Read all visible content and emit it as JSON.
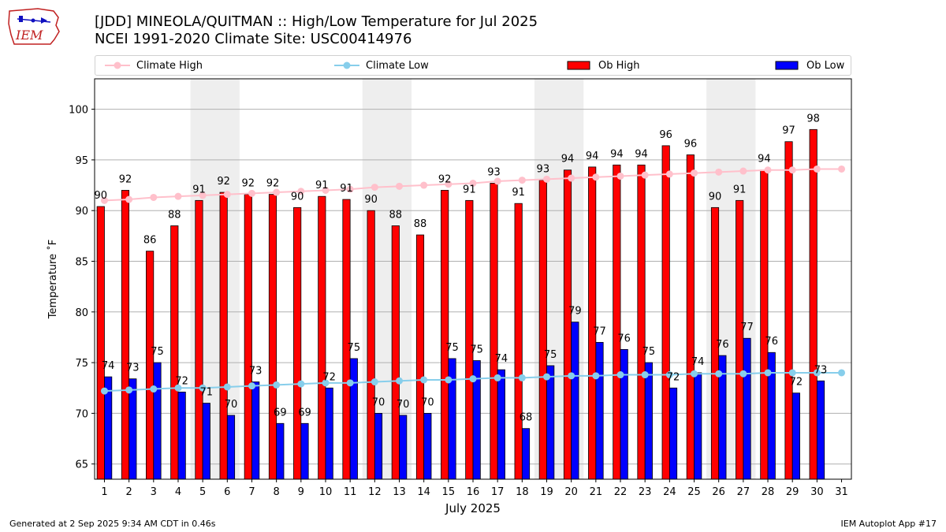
{
  "header": {
    "title_line1": "[JDD] MINEOLA/QUITMAN :: High/Low Temperature for Jul 2025",
    "title_line2": "NCEI 1991-2020 Climate Site: USC00414976",
    "logo_text": "IEM"
  },
  "footer": {
    "generated": "Generated at 2 Sep 2025 9:34 AM CDT in 0.46s",
    "app": "IEM Autoplot App #17"
  },
  "colors": {
    "ob_high": "#ff0000",
    "ob_low": "#0000ff",
    "climate_high": "#ffc0cb",
    "climate_low": "#87ceeb",
    "weekend_shade": "#eeeeee",
    "grid": "#b0b0b0"
  },
  "chart_data": {
    "type": "bar",
    "xlabel": "July 2025",
    "ylabel": "Temperature ˚F",
    "ylim": [
      63.5,
      103
    ],
    "yticks": [
      65,
      70,
      75,
      80,
      85,
      90,
      95,
      100
    ],
    "grid": "horizontal",
    "legend_position": "top",
    "x": [
      1,
      2,
      3,
      4,
      5,
      6,
      7,
      8,
      9,
      10,
      11,
      12,
      13,
      14,
      15,
      16,
      17,
      18,
      19,
      20,
      21,
      22,
      23,
      24,
      25,
      26,
      27,
      28,
      29,
      30,
      31
    ],
    "shaded_weekends": [
      [
        5,
        6
      ],
      [
        12,
        13
      ],
      [
        19,
        20
      ],
      [
        26,
        27
      ]
    ],
    "series": [
      {
        "name": "Climate High",
        "kind": "line",
        "values": [
          91.0,
          91.1,
          91.3,
          91.4,
          91.5,
          91.6,
          91.7,
          91.8,
          91.9,
          92.0,
          92.1,
          92.3,
          92.4,
          92.5,
          92.6,
          92.7,
          92.9,
          93.0,
          93.1,
          93.2,
          93.3,
          93.4,
          93.5,
          93.6,
          93.7,
          93.8,
          93.9,
          94.0,
          94.0,
          94.1,
          94.1
        ]
      },
      {
        "name": "Climate Low",
        "kind": "line",
        "values": [
          72.2,
          72.3,
          72.4,
          72.5,
          72.5,
          72.6,
          72.7,
          72.8,
          72.9,
          73.0,
          73.0,
          73.1,
          73.2,
          73.3,
          73.3,
          73.4,
          73.5,
          73.5,
          73.6,
          73.7,
          73.7,
          73.8,
          73.8,
          73.8,
          73.9,
          73.9,
          73.9,
          74.0,
          74.0,
          74.0,
          74.0
        ]
      },
      {
        "name": "Ob High",
        "kind": "bar",
        "values": [
          90.4,
          92.0,
          86.0,
          88.5,
          91.0,
          91.8,
          91.6,
          91.6,
          90.3,
          91.4,
          91.1,
          90.0,
          88.5,
          87.6,
          92.0,
          91.0,
          92.7,
          90.7,
          93.0,
          94.0,
          94.3,
          94.5,
          94.5,
          96.4,
          95.5,
          90.3,
          91.0,
          94.0,
          96.8,
          98.0,
          null
        ],
        "labels": [
          "90",
          "92",
          "86",
          "88",
          "91",
          "92",
          "92",
          "92",
          "90",
          "91",
          "91",
          "90",
          "88",
          "88",
          "92",
          "91",
          "93",
          "91",
          "93",
          "94",
          "94",
          "94",
          "94",
          "96",
          "96",
          "90",
          "91",
          "94",
          "97",
          "98",
          ""
        ]
      },
      {
        "name": "Ob Low",
        "kind": "bar",
        "values": [
          73.6,
          73.4,
          75.0,
          72.1,
          71.0,
          69.8,
          73.1,
          69.0,
          69.0,
          72.5,
          75.4,
          70.0,
          69.8,
          70.0,
          75.4,
          75.2,
          74.3,
          68.5,
          74.7,
          79.0,
          77.0,
          76.3,
          75.0,
          72.5,
          74.0,
          75.7,
          77.4,
          76.0,
          72.0,
          73.2,
          null
        ],
        "labels": [
          "74",
          "73",
          "75",
          "72",
          "71",
          "70",
          "73",
          "69",
          "69",
          "72",
          "75",
          "70",
          "70",
          "70",
          "75",
          "75",
          "74",
          "68",
          "75",
          "79",
          "77",
          "76",
          "75",
          "72",
          "74",
          "76",
          "77",
          "76",
          "72",
          "73",
          ""
        ]
      }
    ]
  }
}
